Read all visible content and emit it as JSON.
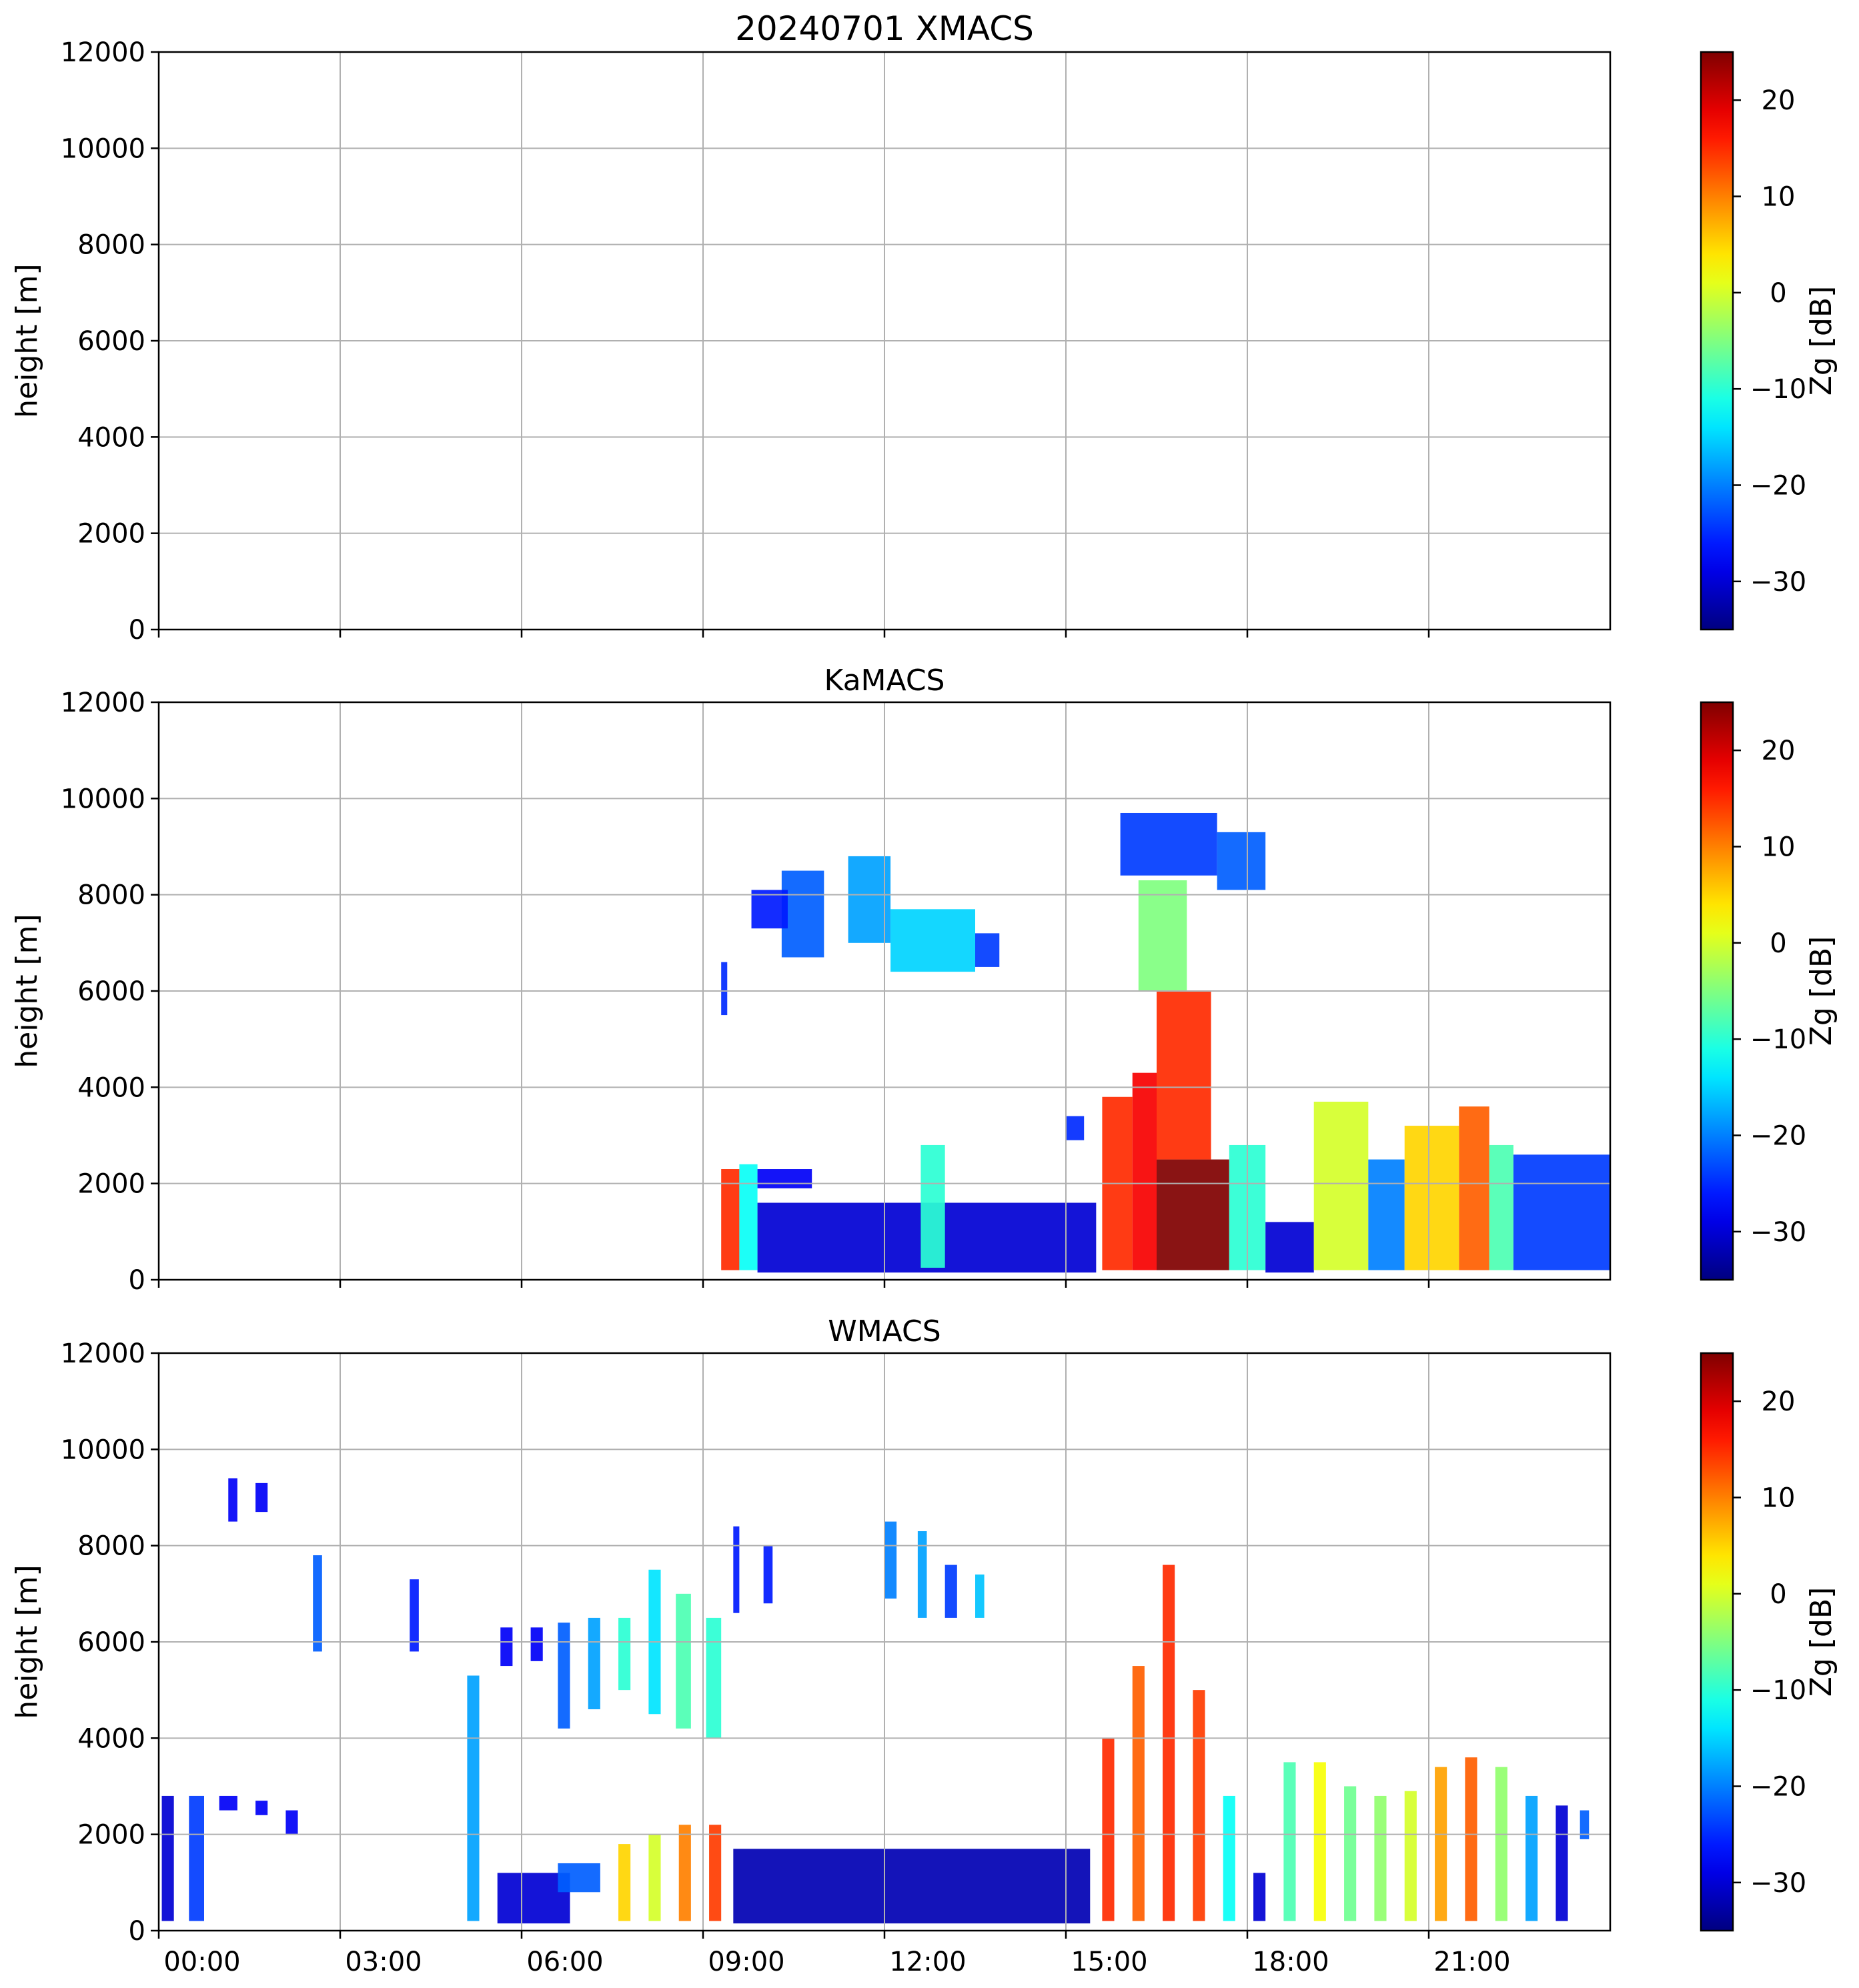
{
  "figure": {
    "colormap": "jet",
    "panels": [
      {
        "title": "20240701 XMACS"
      },
      {
        "title": "KaMACS"
      },
      {
        "title": "WMACS"
      }
    ]
  },
  "chart_data": [
    {
      "type": "heatmap",
      "title": "20240701 XMACS",
      "xlabel": "",
      "ylabel": "height [m]",
      "xlim": [
        0,
        24
      ],
      "ylim": [
        0,
        12000
      ],
      "x_ticks": [
        0,
        3,
        6,
        9,
        12,
        15,
        18,
        21
      ],
      "x_ticklabels": [
        "00:00",
        "03:00",
        "06:00",
        "09:00",
        "12:00",
        "15:00",
        "18:00",
        "21:00"
      ],
      "show_x_ticklabels": false,
      "y_ticks": [
        0,
        2000,
        4000,
        6000,
        8000,
        10000,
        12000
      ],
      "grid": true,
      "colorbar": {
        "label": "Zg [dB]",
        "range": [
          -35,
          25
        ],
        "ticks": [
          -30,
          -20,
          -10,
          0,
          10,
          20
        ],
        "colormap": "jet"
      },
      "cells": []
    },
    {
      "type": "heatmap",
      "title": "KaMACS",
      "xlabel": "",
      "ylabel": "height [m]",
      "xlim": [
        0,
        24
      ],
      "ylim": [
        0,
        12000
      ],
      "x_ticks": [
        0,
        3,
        6,
        9,
        12,
        15,
        18,
        21
      ],
      "x_ticklabels": [
        "00:00",
        "03:00",
        "06:00",
        "09:00",
        "12:00",
        "15:00",
        "18:00",
        "21:00"
      ],
      "show_x_ticklabels": false,
      "y_ticks": [
        0,
        2000,
        4000,
        6000,
        8000,
        10000,
        12000
      ],
      "grid": true,
      "colorbar": {
        "label": "Zg [dB]",
        "range": [
          -35,
          25
        ],
        "ticks": [
          -30,
          -20,
          -10,
          0,
          10,
          20
        ],
        "colormap": "jet"
      },
      "cells": [
        {
          "x0": 9.3,
          "x1": 9.6,
          "y0": 200,
          "y1": 2300,
          "z": 15
        },
        {
          "x0": 9.6,
          "x1": 9.9,
          "y0": 200,
          "y1": 2400,
          "z": -12
        },
        {
          "x0": 9.9,
          "x1": 15.5,
          "y0": 150,
          "y1": 1600,
          "z": -30
        },
        {
          "x0": 9.9,
          "x1": 10.8,
          "y0": 1900,
          "y1": 2300,
          "z": -28
        },
        {
          "x0": 10.3,
          "x1": 11.0,
          "y0": 6700,
          "y1": 8500,
          "z": -22
        },
        {
          "x0": 9.8,
          "x1": 10.4,
          "y0": 7300,
          "y1": 8100,
          "z": -26
        },
        {
          "x0": 11.4,
          "x1": 12.1,
          "y0": 7000,
          "y1": 8800,
          "z": -18
        },
        {
          "x0": 12.1,
          "x1": 13.5,
          "y0": 6400,
          "y1": 7700,
          "z": -15
        },
        {
          "x0": 13.5,
          "x1": 13.9,
          "y0": 6500,
          "y1": 7200,
          "z": -24
        },
        {
          "x0": 12.6,
          "x1": 13.0,
          "y0": 250,
          "y1": 2800,
          "z": -10
        },
        {
          "x0": 9.3,
          "x1": 9.4,
          "y0": 5500,
          "y1": 6600,
          "z": -25
        },
        {
          "x0": 15.0,
          "x1": 15.3,
          "y0": 2900,
          "y1": 3400,
          "z": -25
        },
        {
          "x0": 15.6,
          "x1": 16.1,
          "y0": 200,
          "y1": 3800,
          "z": 15
        },
        {
          "x0": 16.1,
          "x1": 16.5,
          "y0": 200,
          "y1": 4300,
          "z": 18
        },
        {
          "x0": 16.5,
          "x1": 17.7,
          "y0": 200,
          "y1": 2500,
          "z": 25
        },
        {
          "x0": 16.5,
          "x1": 17.4,
          "y0": 2500,
          "y1": 6000,
          "z": 15
        },
        {
          "x0": 16.2,
          "x1": 17.0,
          "y0": 6000,
          "y1": 8300,
          "z": -5
        },
        {
          "x0": 15.9,
          "x1": 17.5,
          "y0": 8400,
          "y1": 9700,
          "z": -24
        },
        {
          "x0": 17.5,
          "x1": 18.3,
          "y0": 8100,
          "y1": 9300,
          "z": -22
        },
        {
          "x0": 17.7,
          "x1": 18.3,
          "y0": 200,
          "y1": 2800,
          "z": -10
        },
        {
          "x0": 18.3,
          "x1": 19.1,
          "y0": 150,
          "y1": 1200,
          "z": -30
        },
        {
          "x0": 19.1,
          "x1": 20.0,
          "y0": 200,
          "y1": 3700,
          "z": 0
        },
        {
          "x0": 20.0,
          "x1": 20.6,
          "y0": 200,
          "y1": 2500,
          "z": -20
        },
        {
          "x0": 20.6,
          "x1": 21.5,
          "y0": 200,
          "y1": 3200,
          "z": 5
        },
        {
          "x0": 21.5,
          "x1": 22.0,
          "y0": 200,
          "y1": 3600,
          "z": 12
        },
        {
          "x0": 22.0,
          "x1": 22.4,
          "y0": 200,
          "y1": 2800,
          "z": -8
        },
        {
          "x0": 22.4,
          "x1": 24.0,
          "y0": 200,
          "y1": 2600,
          "z": -24
        }
      ]
    },
    {
      "type": "heatmap",
      "title": "WMACS",
      "xlabel": "",
      "ylabel": "height [m]",
      "xlim": [
        0,
        24
      ],
      "ylim": [
        0,
        12000
      ],
      "x_ticks": [
        0,
        3,
        6,
        9,
        12,
        15,
        18,
        21
      ],
      "x_ticklabels": [
        "00:00",
        "03:00",
        "06:00",
        "09:00",
        "12:00",
        "15:00",
        "18:00",
        "21:00"
      ],
      "show_x_ticklabels": true,
      "y_ticks": [
        0,
        2000,
        4000,
        6000,
        8000,
        10000,
        12000
      ],
      "grid": true,
      "colorbar": {
        "label": "Zg [dB]",
        "range": [
          -35,
          25
        ],
        "ticks": [
          -30,
          -20,
          -10,
          0,
          10,
          20
        ],
        "colormap": "jet"
      },
      "cells": [
        {
          "x0": 0.05,
          "x1": 0.25,
          "y0": 200,
          "y1": 2800,
          "z": -30
        },
        {
          "x0": 0.5,
          "x1": 0.75,
          "y0": 200,
          "y1": 2800,
          "z": -24
        },
        {
          "x0": 1.0,
          "x1": 1.3,
          "y0": 2500,
          "y1": 2800,
          "z": -28
        },
        {
          "x0": 1.6,
          "x1": 1.8,
          "y0": 2400,
          "y1": 2700,
          "z": -28
        },
        {
          "x0": 2.1,
          "x1": 2.3,
          "y0": 2000,
          "y1": 2500,
          "z": -28
        },
        {
          "x0": 1.15,
          "x1": 1.3,
          "y0": 8500,
          "y1": 9400,
          "z": -28
        },
        {
          "x0": 1.6,
          "x1": 1.8,
          "y0": 8700,
          "y1": 9300,
          "z": -28
        },
        {
          "x0": 2.55,
          "x1": 2.7,
          "y0": 5800,
          "y1": 7800,
          "z": -22
        },
        {
          "x0": 4.15,
          "x1": 4.3,
          "y0": 5800,
          "y1": 7300,
          "z": -26
        },
        {
          "x0": 5.1,
          "x1": 5.3,
          "y0": 200,
          "y1": 5300,
          "z": -18
        },
        {
          "x0": 5.65,
          "x1": 5.85,
          "y0": 5500,
          "y1": 6300,
          "z": -28
        },
        {
          "x0": 6.15,
          "x1": 6.35,
          "y0": 5600,
          "y1": 6300,
          "z": -28
        },
        {
          "x0": 6.6,
          "x1": 6.8,
          "y0": 4200,
          "y1": 6400,
          "z": -22
        },
        {
          "x0": 7.1,
          "x1": 7.3,
          "y0": 4600,
          "y1": 6500,
          "z": -18
        },
        {
          "x0": 7.6,
          "x1": 7.8,
          "y0": 5000,
          "y1": 6500,
          "z": -10
        },
        {
          "x0": 8.1,
          "x1": 8.3,
          "y0": 4500,
          "y1": 7500,
          "z": -14
        },
        {
          "x0": 8.55,
          "x1": 8.8,
          "y0": 4200,
          "y1": 7000,
          "z": -8
        },
        {
          "x0": 9.05,
          "x1": 9.3,
          "y0": 4000,
          "y1": 6500,
          "z": -10
        },
        {
          "x0": 9.5,
          "x1": 9.6,
          "y0": 6600,
          "y1": 8400,
          "z": -26
        },
        {
          "x0": 10.0,
          "x1": 10.15,
          "y0": 6800,
          "y1": 8000,
          "z": -26
        },
        {
          "x0": 12.0,
          "x1": 12.2,
          "y0": 6900,
          "y1": 8500,
          "z": -20
        },
        {
          "x0": 12.55,
          "x1": 12.7,
          "y0": 6500,
          "y1": 8300,
          "z": -18
        },
        {
          "x0": 13.0,
          "x1": 13.2,
          "y0": 6500,
          "y1": 7600,
          "z": -24
        },
        {
          "x0": 13.5,
          "x1": 13.65,
          "y0": 6500,
          "y1": 7400,
          "z": -16
        },
        {
          "x0": 5.6,
          "x1": 6.8,
          "y0": 150,
          "y1": 1200,
          "z": -30
        },
        {
          "x0": 6.6,
          "x1": 7.3,
          "y0": 800,
          "y1": 1400,
          "z": -22
        },
        {
          "x0": 7.6,
          "x1": 7.8,
          "y0": 200,
          "y1": 1800,
          "z": 5
        },
        {
          "x0": 8.1,
          "x1": 8.3,
          "y0": 200,
          "y1": 2000,
          "z": 0
        },
        {
          "x0": 8.6,
          "x1": 8.8,
          "y0": 200,
          "y1": 2200,
          "z": 10
        },
        {
          "x0": 9.1,
          "x1": 9.3,
          "y0": 200,
          "y1": 2200,
          "z": 14
        },
        {
          "x0": 9.5,
          "x1": 15.4,
          "y0": 150,
          "y1": 1700,
          "z": -32
        },
        {
          "x0": 15.6,
          "x1": 15.8,
          "y0": 200,
          "y1": 4000,
          "z": 15
        },
        {
          "x0": 16.1,
          "x1": 16.3,
          "y0": 200,
          "y1": 5500,
          "z": 12
        },
        {
          "x0": 16.6,
          "x1": 16.8,
          "y0": 200,
          "y1": 7600,
          "z": 15
        },
        {
          "x0": 17.1,
          "x1": 17.3,
          "y0": 200,
          "y1": 5000,
          "z": 14
        },
        {
          "x0": 17.6,
          "x1": 17.8,
          "y0": 200,
          "y1": 2800,
          "z": -12
        },
        {
          "x0": 18.1,
          "x1": 18.3,
          "y0": 200,
          "y1": 1200,
          "z": -30
        },
        {
          "x0": 18.6,
          "x1": 18.8,
          "y0": 200,
          "y1": 3500,
          "z": -8
        },
        {
          "x0": 19.1,
          "x1": 19.3,
          "y0": 200,
          "y1": 3500,
          "z": 2
        },
        {
          "x0": 19.6,
          "x1": 19.8,
          "y0": 200,
          "y1": 3000,
          "z": -6
        },
        {
          "x0": 20.1,
          "x1": 20.3,
          "y0": 200,
          "y1": 2800,
          "z": -4
        },
        {
          "x0": 20.6,
          "x1": 20.8,
          "y0": 200,
          "y1": 2900,
          "z": 0
        },
        {
          "x0": 21.1,
          "x1": 21.3,
          "y0": 200,
          "y1": 3400,
          "z": 8
        },
        {
          "x0": 21.6,
          "x1": 21.8,
          "y0": 200,
          "y1": 3600,
          "z": 12
        },
        {
          "x0": 22.1,
          "x1": 22.3,
          "y0": 200,
          "y1": 3400,
          "z": -4
        },
        {
          "x0": 22.6,
          "x1": 22.8,
          "y0": 200,
          "y1": 2800,
          "z": -18
        },
        {
          "x0": 23.1,
          "x1": 23.3,
          "y0": 200,
          "y1": 2600,
          "z": -30
        },
        {
          "x0": 23.5,
          "x1": 23.65,
          "y0": 1900,
          "y1": 2500,
          "z": -22
        }
      ]
    }
  ]
}
